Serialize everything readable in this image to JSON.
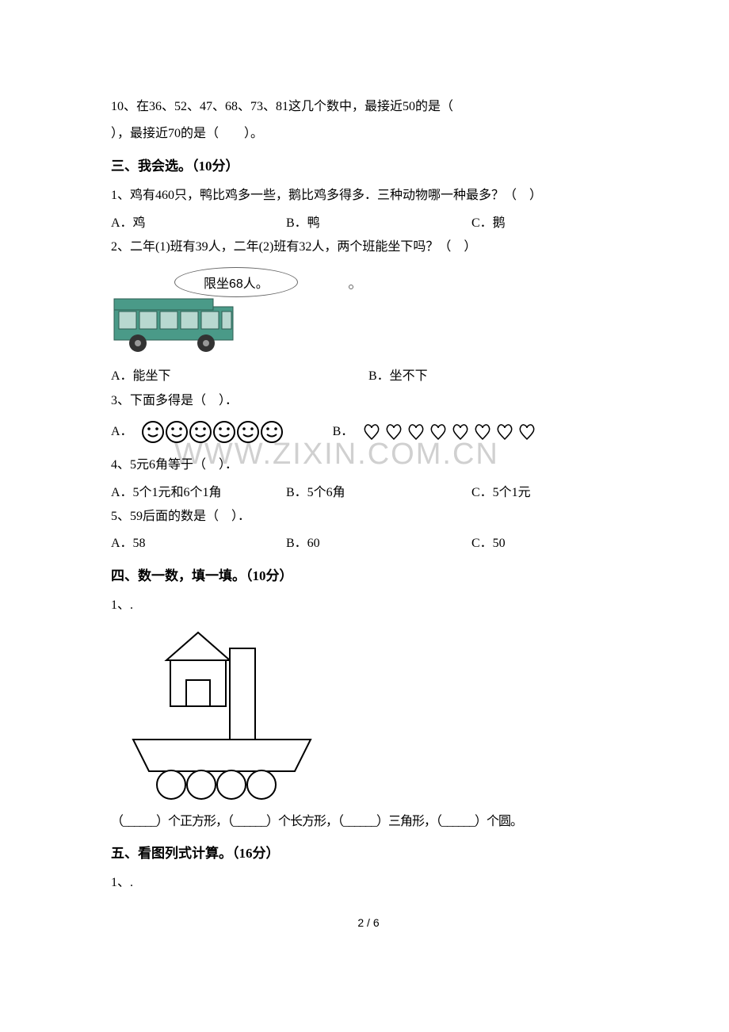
{
  "q10": {
    "line1": "10、在36、52、47、68、73、81这几个数中，最接近50的是（",
    "line2": "），最接近70的是（　　）。"
  },
  "section3": {
    "heading": "三、我会选。（10分）",
    "q1": {
      "stem": "1、鸡有460只，鸭比鸡多一些，鹅比鸡多得多．三种动物哪一种最多？（　）",
      "a": "A．鸡",
      "b": "B．鸭",
      "c": "C．鹅"
    },
    "q2": {
      "stem": "2、二年(1)班有39人，二年(2)班有32人，两个班能坐下吗？（　）",
      "bubble": "限坐68人。",
      "a": "A．能坐下",
      "b": "B．坐不下",
      "bus_body_color": "#4a9a88",
      "bus_window_color": "#b8d8d0"
    },
    "q3": {
      "stem": "3、下面多得是（　）．",
      "a": "A．",
      "b": "B．",
      "face_count": 6,
      "heart_count": 8,
      "face_fill": "#ffffff",
      "face_stroke": "#000000",
      "heart_stroke": "#000000",
      "heart_fill": "#ffffff"
    },
    "q4": {
      "stem": "4、5元6角等于（　）．",
      "a": "A．5个1元和6个1角",
      "b": "B．5个6角",
      "c": "C．5个1元"
    },
    "q5": {
      "stem": "5、59后面的数是（　）．",
      "a": "A．58",
      "b": "B．60",
      "c": "C．50"
    }
  },
  "section4": {
    "heading": "四、数一数，填一填。（10分）",
    "q1": {
      "stem": "1、.",
      "answer_line": "（______）个正方形，（______）个长方形，（______）三角形，（______）个圆。",
      "shape_stroke": "#000000",
      "shape_fill": "#ffffff"
    }
  },
  "section5": {
    "heading": "五、看图列式计算。（16分）",
    "q1": {
      "stem": "1、."
    }
  },
  "watermark_text": "WWW.ZIXIN.COM.CN",
  "page_num": "2 / 6"
}
